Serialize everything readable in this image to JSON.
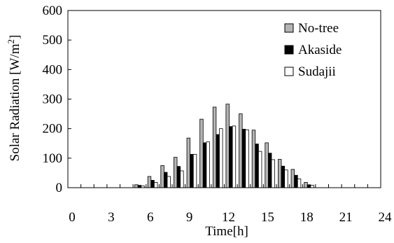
{
  "chart_data": {
    "type": "bar",
    "title": "",
    "xlabel": "Time[h]",
    "ylabel": "Solar Radiation [W/m2]",
    "ylabel_parts": {
      "main": "Solar Radiation [W/m",
      "superscript": "2",
      "end": "]"
    },
    "xlim": [
      0,
      24
    ],
    "ylim": [
      0,
      600
    ],
    "xticks": [
      0,
      3,
      6,
      9,
      12,
      15,
      18,
      21,
      24
    ],
    "yticks": [
      0,
      100,
      200,
      300,
      400,
      500,
      600
    ],
    "grid": false,
    "legend_position": "top-right",
    "hours": [
      5,
      6,
      7,
      8,
      9,
      10,
      11,
      12,
      13,
      14,
      15,
      16,
      17,
      18
    ],
    "series": [
      {
        "name": "No-tree",
        "color": "#b4b4b4",
        "values": [
          10,
          38,
          75,
          103,
          168,
          232,
          273,
          283,
          250,
          195,
          152,
          96,
          62,
          18
        ]
      },
      {
        "name": "Akaside",
        "color": "#000000",
        "values": [
          8,
          25,
          52,
          72,
          113,
          152,
          180,
          207,
          198,
          148,
          117,
          73,
          42,
          10
        ]
      },
      {
        "name": "Sudajii",
        "color": "#ffffff",
        "values": [
          6,
          18,
          38,
          57,
          113,
          155,
          200,
          209,
          196,
          123,
          95,
          60,
          30,
          8
        ]
      }
    ]
  }
}
